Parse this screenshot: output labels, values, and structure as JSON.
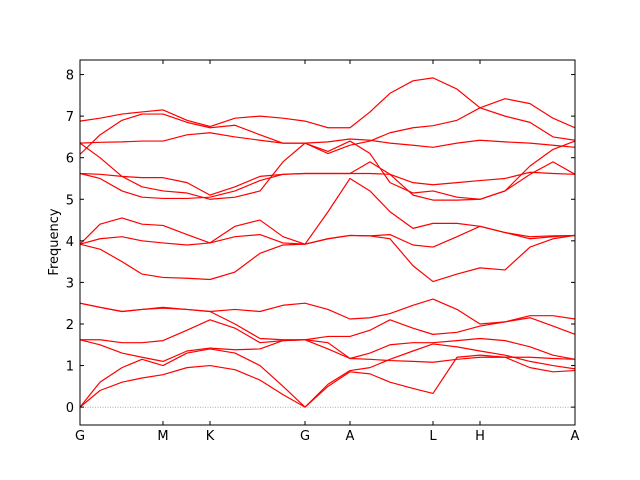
{
  "chart_data": {
    "type": "line",
    "ylabel": "Frequency",
    "x": [
      0,
      0.2,
      0.42,
      0.62,
      0.83,
      1.07,
      1.3,
      1.55,
      1.8,
      2.03,
      2.25,
      2.48,
      2.7,
      2.9,
      3.1,
      3.33,
      3.53,
      3.77,
      4.0,
      4.25,
      4.5,
      4.73,
      4.95
    ],
    "xlim": [
      0,
      4.95
    ],
    "xticks": [
      {
        "value": 0,
        "label": "G"
      },
      {
        "value": 0.83,
        "label": "M"
      },
      {
        "value": 1.3,
        "label": "K"
      },
      {
        "value": 2.25,
        "label": "G"
      },
      {
        "value": 2.7,
        "label": "A"
      },
      {
        "value": 3.53,
        "label": "L"
      },
      {
        "value": 4.0,
        "label": "H"
      },
      {
        "value": 4.95,
        "label": "A"
      }
    ],
    "ylim": [
      -0.43,
      8.35
    ],
    "yticks": [
      0,
      1,
      2,
      3,
      4,
      5,
      6,
      7,
      8
    ],
    "zero_line": true,
    "series": [
      {
        "color": "#ff0000",
        "values": [
          0,
          0.4,
          0.6,
          0.7,
          0.78,
          0.95,
          1.0,
          0.9,
          0.65,
          0.3,
          0,
          0.5,
          0.85,
          0.8,
          0.6,
          0.45,
          0.33,
          1.2,
          1.25,
          1.2,
          0.95,
          0.85,
          0.88
        ]
      },
      {
        "color": "#ff0000",
        "values": [
          0,
          0.6,
          0.95,
          1.15,
          1.0,
          1.3,
          1.4,
          1.3,
          1.0,
          0.5,
          0,
          0.55,
          0.88,
          0.95,
          1.15,
          1.35,
          1.52,
          1.45,
          1.35,
          1.25,
          1.1,
          1.0,
          0.92
        ]
      },
      {
        "color": "#ff0000",
        "values": [
          1.62,
          1.5,
          1.3,
          1.2,
          1.1,
          1.35,
          1.42,
          1.38,
          1.4,
          1.6,
          1.62,
          1.4,
          1.17,
          1.15,
          1.12,
          1.1,
          1.08,
          1.15,
          1.2,
          1.2,
          1.2,
          1.17,
          1.15
        ]
      },
      {
        "color": "#ff0000",
        "values": [
          1.62,
          1.62,
          1.55,
          1.55,
          1.6,
          1.85,
          2.1,
          1.9,
          1.55,
          1.6,
          1.62,
          1.55,
          1.17,
          1.3,
          1.5,
          1.55,
          1.55,
          1.6,
          1.65,
          1.6,
          1.45,
          1.25,
          1.15
        ]
      },
      {
        "color": "#ff0000",
        "values": [
          2.5,
          2.4,
          2.3,
          2.35,
          2.4,
          2.35,
          2.3,
          2.0,
          1.65,
          1.62,
          1.62,
          1.7,
          1.7,
          1.85,
          2.1,
          1.9,
          1.75,
          1.8,
          1.95,
          2.05,
          2.15,
          1.95,
          1.75
        ]
      },
      {
        "color": "#ff0000",
        "values": [
          2.5,
          2.4,
          2.3,
          2.35,
          2.38,
          2.35,
          2.3,
          2.35,
          2.3,
          2.45,
          2.5,
          2.35,
          2.12,
          2.15,
          2.25,
          2.45,
          2.6,
          2.35,
          2.0,
          2.05,
          2.2,
          2.2,
          2.12
        ]
      },
      {
        "color": "#ff0000",
        "values": [
          3.92,
          3.8,
          3.5,
          3.2,
          3.12,
          3.1,
          3.07,
          3.25,
          3.7,
          3.9,
          3.92,
          4.05,
          4.13,
          4.12,
          4.05,
          3.4,
          3.02,
          3.2,
          3.35,
          3.3,
          3.85,
          4.05,
          4.13
        ]
      },
      {
        "color": "#ff0000",
        "values": [
          3.92,
          4.05,
          4.1,
          4.0,
          3.95,
          3.9,
          3.95,
          4.1,
          4.15,
          3.95,
          3.92,
          4.05,
          4.13,
          4.12,
          4.15,
          3.9,
          3.85,
          4.1,
          4.35,
          4.2,
          4.1,
          4.12,
          4.13
        ]
      },
      {
        "color": "#ff0000",
        "values": [
          3.92,
          4.4,
          4.55,
          4.4,
          4.37,
          4.15,
          3.95,
          4.35,
          4.5,
          4.1,
          3.92,
          4.7,
          5.5,
          5.2,
          4.7,
          4.3,
          4.42,
          4.42,
          4.35,
          4.2,
          4.05,
          4.1,
          4.13
        ]
      },
      {
        "color": "#ff0000",
        "values": [
          5.62,
          5.6,
          5.55,
          5.52,
          5.52,
          5.4,
          5.1,
          5.3,
          5.55,
          5.6,
          5.62,
          5.62,
          5.62,
          5.62,
          5.6,
          5.4,
          5.35,
          5.4,
          5.45,
          5.5,
          5.65,
          5.62,
          5.6
        ]
      },
      {
        "color": "#ff0000",
        "values": [
          5.62,
          5.5,
          5.2,
          5.05,
          5.02,
          5.02,
          5.05,
          5.2,
          5.45,
          5.6,
          5.62,
          5.62,
          5.62,
          5.9,
          5.6,
          5.1,
          4.98,
          4.98,
          5.0,
          5.2,
          5.6,
          5.9,
          5.6
        ]
      },
      {
        "color": "#ff0000",
        "values": [
          6.35,
          6.0,
          5.55,
          5.3,
          5.2,
          5.15,
          5.0,
          5.05,
          5.2,
          5.9,
          6.35,
          6.15,
          6.4,
          6.1,
          5.4,
          5.15,
          5.2,
          5.05,
          5.0,
          5.2,
          5.8,
          6.2,
          6.4
        ]
      },
      {
        "color": "#ff0000",
        "values": [
          6.35,
          6.37,
          6.38,
          6.4,
          6.4,
          6.55,
          6.6,
          6.5,
          6.42,
          6.35,
          6.35,
          6.1,
          6.3,
          6.4,
          6.6,
          6.72,
          6.77,
          6.9,
          7.2,
          7.0,
          6.85,
          6.5,
          6.42
        ]
      },
      {
        "color": "#ff0000",
        "values": [
          6.08,
          6.55,
          6.9,
          7.05,
          7.05,
          6.85,
          6.72,
          6.78,
          6.55,
          6.35,
          6.35,
          6.38,
          6.45,
          6.42,
          6.35,
          6.3,
          6.25,
          6.35,
          6.42,
          6.38,
          6.35,
          6.3,
          6.25
        ]
      },
      {
        "color": "#ff0000",
        "values": [
          6.88,
          6.95,
          7.05,
          7.1,
          7.15,
          6.9,
          6.75,
          6.95,
          7.0,
          6.95,
          6.88,
          6.72,
          6.72,
          7.1,
          7.55,
          7.85,
          7.92,
          7.65,
          7.2,
          7.42,
          7.3,
          6.95,
          6.72
        ]
      }
    ]
  }
}
